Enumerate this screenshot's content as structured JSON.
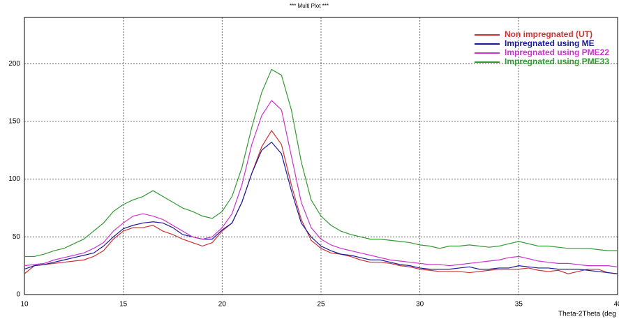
{
  "chart_data": {
    "type": "line",
    "title": "*** Multi Plot ***",
    "x_label": "Theta-2Theta (deg",
    "x": [
      10,
      10.5,
      11,
      11.5,
      12,
      12.5,
      13,
      13.5,
      14,
      14.5,
      15,
      15.5,
      16,
      16.5,
      17,
      17.5,
      18,
      18.5,
      19,
      19.5,
      20,
      20.5,
      21,
      21.5,
      22,
      22.5,
      23,
      23.5,
      24,
      24.5,
      25,
      25.5,
      26,
      26.5,
      27,
      27.5,
      28,
      28.5,
      29,
      29.5,
      30,
      30.5,
      31,
      31.5,
      32,
      32.5,
      33,
      33.5,
      34,
      34.5,
      35,
      35.5,
      36,
      36.5,
      37,
      37.5,
      38,
      38.5,
      39,
      39.5,
      40
    ],
    "series": [
      {
        "name": "Non impregnated (UT)",
        "color": "#cc3333",
        "values": [
          18,
          25,
          26,
          27,
          28,
          29,
          30,
          33,
          38,
          48,
          55,
          58,
          58,
          60,
          55,
          52,
          48,
          45,
          42,
          45,
          55,
          62,
          80,
          105,
          128,
          142,
          130,
          95,
          65,
          47,
          40,
          36,
          35,
          33,
          30,
          28,
          28,
          27,
          25,
          24,
          22,
          21,
          20,
          20,
          20,
          19,
          20,
          21,
          22,
          22,
          22,
          23,
          21,
          20,
          21,
          18,
          20,
          22,
          22,
          19,
          18
        ]
      },
      {
        "name": "Impregnated using ME",
        "color": "#1a1a99",
        "values": [
          22,
          25,
          26,
          28,
          30,
          32,
          34,
          36,
          42,
          50,
          57,
          60,
          62,
          63,
          62,
          58,
          52,
          50,
          48,
          48,
          56,
          62,
          80,
          105,
          125,
          132,
          122,
          90,
          62,
          50,
          42,
          38,
          35,
          34,
          32,
          30,
          30,
          28,
          26,
          25,
          23,
          22,
          22,
          22,
          23,
          24,
          22,
          22,
          23,
          23,
          25,
          24,
          23,
          23,
          22,
          22,
          22,
          21,
          20,
          19,
          18
        ]
      },
      {
        "name": "Impregnated using PME22",
        "color": "#cc33cc",
        "values": [
          25,
          26,
          27,
          30,
          32,
          34,
          36,
          40,
          45,
          55,
          62,
          68,
          70,
          68,
          65,
          60,
          55,
          50,
          48,
          50,
          58,
          70,
          95,
          130,
          155,
          168,
          160,
          120,
          80,
          58,
          48,
          43,
          40,
          38,
          36,
          34,
          32,
          30,
          29,
          28,
          27,
          26,
          26,
          25,
          26,
          27,
          28,
          29,
          30,
          32,
          33,
          31,
          29,
          28,
          27,
          27,
          26,
          25,
          25,
          25,
          24
        ]
      },
      {
        "name": "Impregnated using PME33",
        "color": "#339933",
        "values": [
          33,
          33,
          35,
          38,
          40,
          44,
          48,
          55,
          62,
          72,
          78,
          82,
          85,
          90,
          85,
          80,
          75,
          72,
          68,
          66,
          72,
          85,
          110,
          145,
          175,
          195,
          190,
          160,
          115,
          82,
          68,
          60,
          55,
          52,
          50,
          48,
          48,
          47,
          46,
          45,
          43,
          42,
          40,
          42,
          42,
          43,
          42,
          41,
          42,
          44,
          46,
          44,
          42,
          42,
          41,
          40,
          40,
          40,
          39,
          38,
          38
        ]
      }
    ],
    "xlim": [
      10,
      40
    ],
    "ylim": [
      0,
      240
    ],
    "xticks": [
      10,
      15,
      20,
      25,
      30,
      35,
      40
    ],
    "yticks": [
      0,
      50,
      100,
      150,
      200
    ],
    "grid": true,
    "legend": "upper right"
  }
}
